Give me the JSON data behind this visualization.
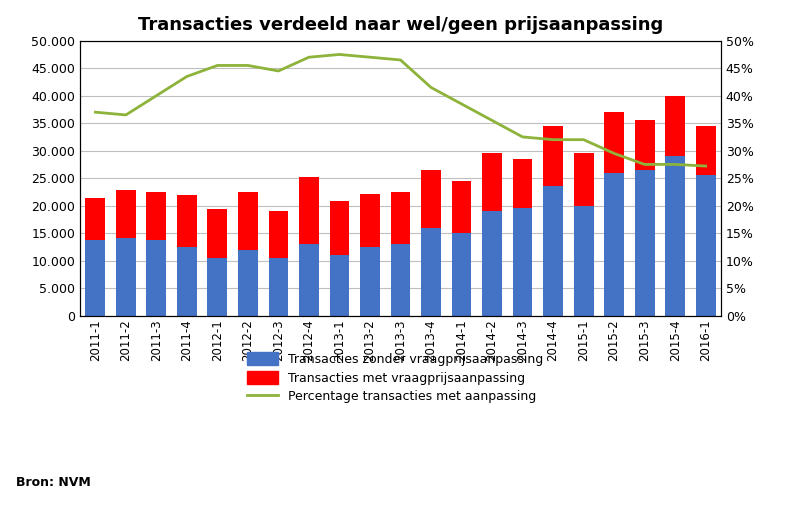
{
  "title": "Transacties verdeeld naar wel/geen prijsaanpassing",
  "categories": [
    "2011-1",
    "2011-2",
    "2011-3",
    "2011-4",
    "2012-1",
    "2012-2",
    "2012-3",
    "2012-4",
    "2013-1",
    "2013-2",
    "2013-3",
    "2013-4",
    "2014-1",
    "2014-2",
    "2014-3",
    "2014-4",
    "2015-1",
    "2015-2",
    "2015-3",
    "2015-4",
    "2016-1"
  ],
  "zonder": [
    13800,
    14200,
    13800,
    12500,
    10500,
    12000,
    10500,
    13000,
    11000,
    12500,
    13000,
    16000,
    15000,
    19000,
    19500,
    23500,
    20000,
    26000,
    26500,
    29000,
    25500
  ],
  "met": [
    7600,
    8600,
    8700,
    9500,
    8800,
    10500,
    8500,
    12200,
    9800,
    9700,
    9500,
    10500,
    9500,
    10500,
    9000,
    11000,
    9500,
    11000,
    9000,
    11000,
    9000
  ],
  "percentage": [
    0.37,
    0.365,
    0.4,
    0.435,
    0.455,
    0.455,
    0.445,
    0.47,
    0.475,
    0.47,
    0.465,
    0.415,
    0.385,
    0.355,
    0.325,
    0.32,
    0.32,
    0.295,
    0.275,
    0.275,
    0.272
  ],
  "bar_blue": "#4472C4",
  "bar_red": "#FF0000",
  "line_color": "#8DB33A",
  "bg_color": "#FFFFFF",
  "grid_color": "#BFBFBF",
  "yticks_left": [
    0,
    5000,
    10000,
    15000,
    20000,
    25000,
    30000,
    35000,
    40000,
    45000,
    50000
  ],
  "ytick_left_labels": [
    "0",
    "5.000",
    "10.000",
    "15.000",
    "20.000",
    "25.000",
    "30.000",
    "35.000",
    "40.000",
    "45.000",
    "50.000"
  ],
  "ytick_right_labels": [
    "0%",
    "5%",
    "10%",
    "15%",
    "20%",
    "25%",
    "30%",
    "35%",
    "40%",
    "45%",
    "50%"
  ],
  "legend_blue": "Transacties zonder vraagprijsaanpassing",
  "legend_red": "Transacties met vraagprijsaanpassing",
  "legend_line": "Percentage transacties met aanpassing",
  "source": "Bron: NVM"
}
